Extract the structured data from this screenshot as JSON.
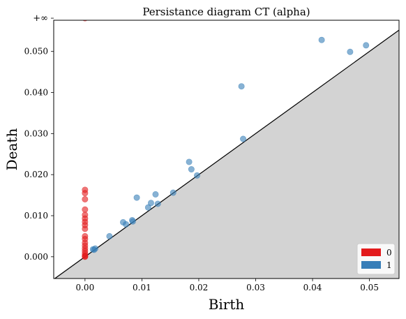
{
  "chart_data": {
    "type": "scatter",
    "title": "Persistance diagram CT (alpha)",
    "xlabel": "Birth",
    "ylabel": "Death",
    "xlim": [
      -0.0055,
      0.0552
    ],
    "ylim": [
      -0.0053,
      0.0576
    ],
    "x_ticks": [
      0.0,
      0.01,
      0.02,
      0.03,
      0.04,
      0.05
    ],
    "x_tick_labels": [
      "0.00",
      "0.01",
      "0.02",
      "0.03",
      "0.04",
      "0.05"
    ],
    "y_ticks": [
      0.0,
      0.01,
      0.02,
      0.03,
      0.04,
      0.05
    ],
    "y_tick_labels": [
      "0.000",
      "0.010",
      "0.020",
      "0.030",
      "0.040",
      "0.050"
    ],
    "infinity_label": "+∞",
    "infinity_value": 0.0581,
    "grid": false,
    "legend_position": "bottom-right",
    "series": [
      {
        "name": "0",
        "color": "#e31a1c",
        "infinite_points": [
          [
            0.0,
            "+∞"
          ]
        ],
        "points": [
          [
            0.0,
            0.0163
          ],
          [
            0.0,
            0.0155
          ],
          [
            0.0,
            0.014
          ],
          [
            0.0,
            0.0115
          ],
          [
            0.0,
            0.0102
          ],
          [
            0.0,
            0.0093
          ],
          [
            0.0,
            0.0085
          ],
          [
            0.0,
            0.0077
          ],
          [
            0.0,
            0.0068
          ],
          [
            0.0,
            0.005
          ],
          [
            0.0,
            0.0043
          ],
          [
            0.0,
            0.0034
          ],
          [
            0.0,
            0.0027
          ],
          [
            0.0,
            0.002
          ],
          [
            0.0,
            0.0014
          ],
          [
            0.0,
            0.0008
          ],
          [
            0.0,
            0.0003
          ],
          [
            0.0,
            0.0001
          ],
          [
            0.0,
            0.0
          ]
        ]
      },
      {
        "name": "1",
        "color": "#377eb8",
        "points": [
          [
            0.0416,
            0.0528
          ],
          [
            0.0466,
            0.0499
          ],
          [
            0.0494,
            0.0515
          ],
          [
            0.0275,
            0.0415
          ],
          [
            0.0278,
            0.0287
          ],
          [
            0.0183,
            0.0231
          ],
          [
            0.0187,
            0.0213
          ],
          [
            0.0197,
            0.0198
          ],
          [
            0.0155,
            0.0156
          ],
          [
            0.0091,
            0.0144
          ],
          [
            0.0124,
            0.0152
          ],
          [
            0.0116,
            0.0131
          ],
          [
            0.0128,
            0.0129
          ],
          [
            0.0111,
            0.012
          ],
          [
            0.0067,
            0.0084
          ],
          [
            0.0072,
            0.0079
          ],
          [
            0.0083,
            0.0089
          ],
          [
            0.0084,
            0.0086
          ],
          [
            0.0043,
            0.005
          ],
          [
            0.0018,
            0.002
          ],
          [
            0.0014,
            0.0018
          ],
          [
            0.0016,
            0.0017
          ]
        ]
      }
    ]
  }
}
